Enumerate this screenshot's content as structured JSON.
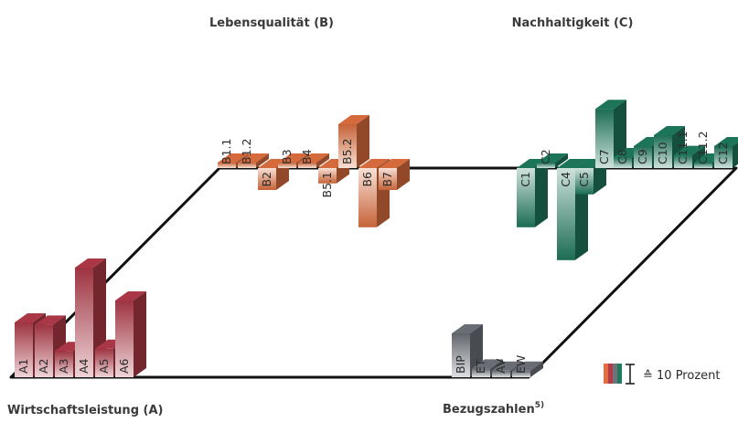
{
  "chart_data": {
    "type": "bar",
    "subtype": "3d-floating-bars-on-perspective-plane",
    "reference_line": "zero-level plane (deviation up/down in Prozent)",
    "groups": [
      {
        "id": "A",
        "title": "Wirtschaftsleistung (A)",
        "color": "#b23a49",
        "categories": [
          "A1",
          "A2",
          "A3",
          "A4",
          "A5",
          "A6"
        ],
        "values": [
          25,
          24,
          12,
          50,
          13,
          35
        ]
      },
      {
        "id": "B",
        "title": "Lebensqualität (B)",
        "color": "#e07040",
        "categories": [
          "B1.1",
          "B1.2",
          "B2",
          "B3",
          "B4",
          "B5.1",
          "B5.2",
          "B6",
          "B7"
        ],
        "values": [
          1,
          1,
          -10,
          1,
          1,
          -7,
          20,
          -27,
          -10
        ]
      },
      {
        "id": "C",
        "title": "Nachhaltigkeit (C)",
        "color": "#1f7b5e",
        "categories": [
          "C1",
          "C2",
          "C4",
          "C5",
          "C7",
          "C8",
          "C9",
          "C10",
          "C11.1",
          "C11.2",
          "C12"
        ],
        "values": [
          -27,
          1,
          -42,
          -12,
          27,
          5,
          10,
          15,
          6,
          2,
          10
        ]
      },
      {
        "id": "BZ",
        "title": "Bezugszahlen",
        "title_sup": "5)",
        "color": "#6e737a",
        "categories": [
          "BIP",
          "ET",
          "AV",
          "EW"
        ],
        "values": [
          20,
          4,
          3,
          3
        ]
      }
    ],
    "legend": {
      "colors": [
        "#e07040",
        "#b23a49",
        "#6e737a",
        "#1f7b5e"
      ],
      "text": "≙ 10 Prozent",
      "unit_value": 10
    }
  }
}
